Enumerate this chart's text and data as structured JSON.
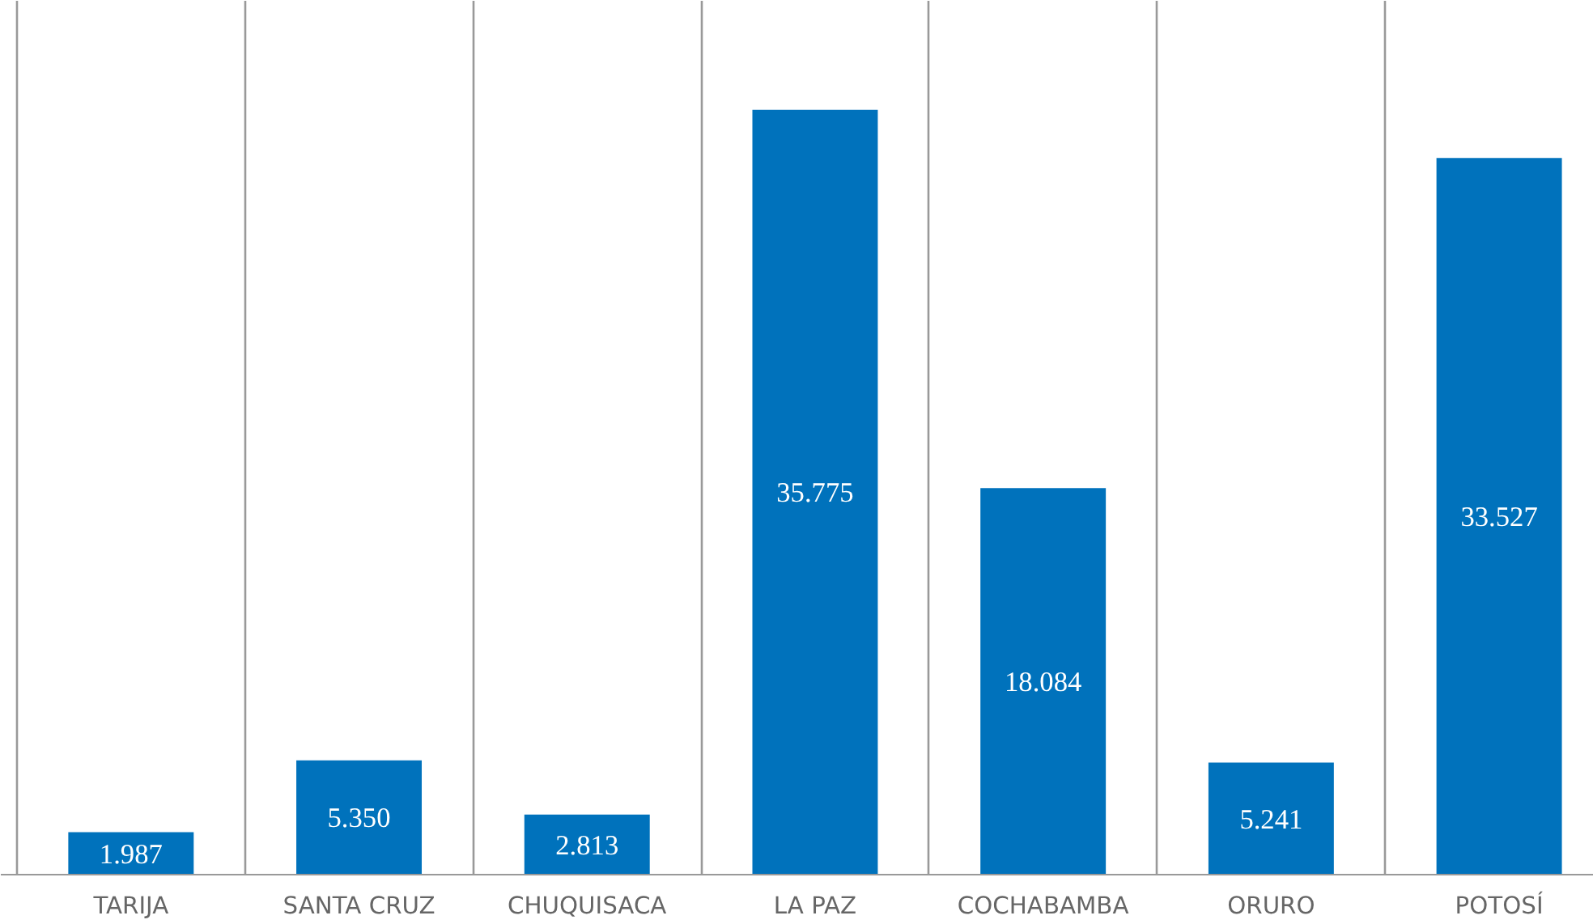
{
  "chart_data": {
    "type": "bar",
    "categories": [
      "TARIJA",
      "SANTA CRUZ",
      "CHUQUISACA",
      "LA PAZ",
      "COCHABAMBA",
      "ORURO",
      "POTOSÍ"
    ],
    "values": [
      1987,
      5350,
      2813,
      35775,
      18084,
      5241,
      33527
    ],
    "value_labels": [
      "1.987",
      "5.350",
      "2.813",
      "35.775",
      "18.084",
      "5.241",
      "33.527"
    ],
    "color": "#0072bc",
    "ylim": [
      0,
      40875
    ],
    "grid": "x",
    "tick_labels": "x"
  }
}
